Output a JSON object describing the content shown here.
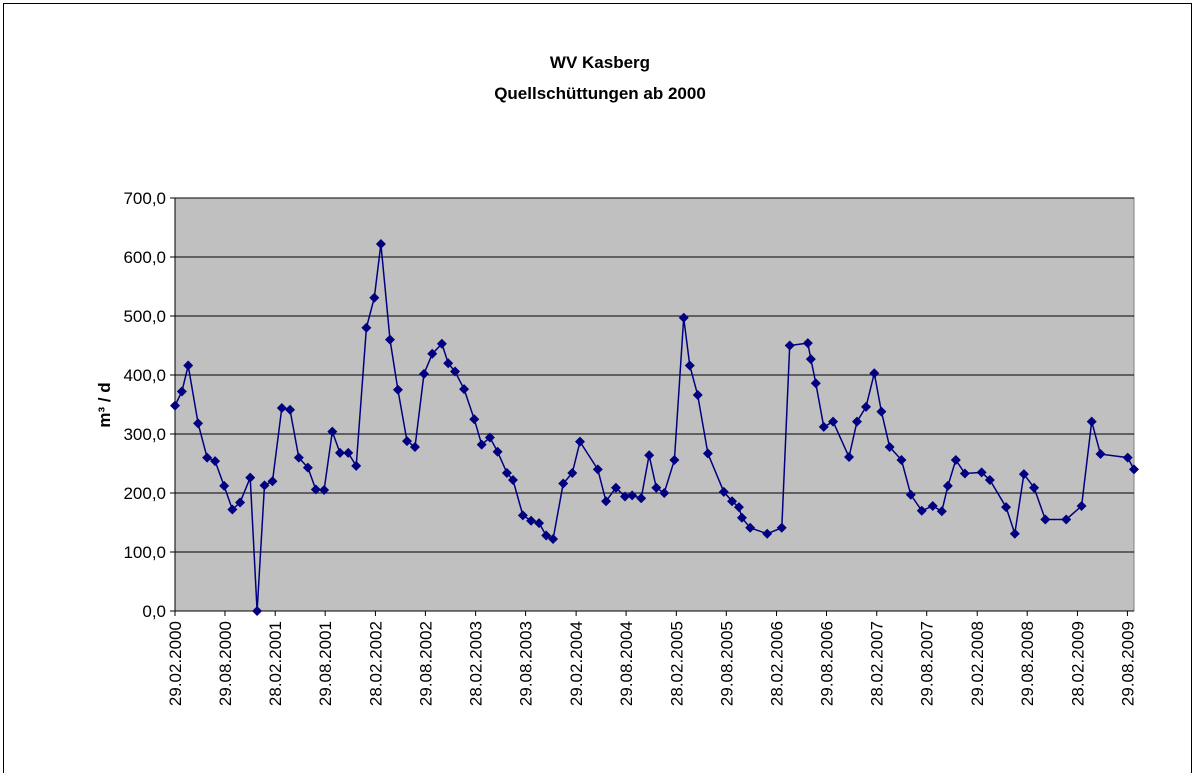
{
  "chart_data": {
    "type": "line",
    "title": "WV Kasberg",
    "subtitle": "Quellschüttungen ab 2000",
    "y_label": "m³ / d",
    "x": [
      "29.02.2000",
      "25.03.2000",
      "17.04.2000",
      "23.05.2000",
      "25.06.2000",
      "24.07.2000",
      "26.08.2000",
      "25.09.2000",
      "23.10.2000",
      "29.11.2000",
      "24.12.2000",
      "20.01.2001",
      "18.02.2001",
      "24.03.2001",
      "23.04.2001",
      "25.05.2001",
      "27.06.2001",
      "26.07.2001",
      "25.08.2001",
      "24.09.2001",
      "22.10.2001",
      "21.11.2001",
      "20.12.2001",
      "26.01.2002",
      "24.02.2002",
      "20.03.2002",
      "22.04.2002",
      "21.05.2002",
      "23.06.2002",
      "22.07.2002",
      "24.08.2002",
      "23.09.2002",
      "28.10.2002",
      "20.11.2002",
      "15.12.2002",
      "17.01.2003",
      "23.02.2003",
      "22.03.2003",
      "21.04.2003",
      "19.05.2003",
      "22.06.2003",
      "14.07.2003",
      "19.08.2003",
      "18.09.2003",
      "17.10.2003",
      "12.11.2003",
      "07.12.2003",
      "13.01.2004",
      "15.02.2004",
      "14.03.2004",
      "18.05.2004",
      "17.06.2004",
      "23.07.2004",
      "25.08.2004",
      "20.09.2004",
      "23.10.2004",
      "21.11.2004",
      "17.12.2004",
      "15.01.2005",
      "21.02.2005",
      "27.03.2005",
      "18.04.2005",
      "17.05.2005",
      "23.06.2005",
      "20.08.2005",
      "19.09.2005",
      "14.10.2005",
      "25.10.2005",
      "24.11.2005",
      "25.01.2006",
      "19.03.2006",
      "17.04.2006",
      "22.06.2006",
      "03.07.2006",
      "21.07.2006",
      "19.08.2006",
      "22.09.2006",
      "19.11.2006",
      "18.12.2006",
      "20.01.2007",
      "19.02.2007",
      "17.03.2007",
      "16.04.2007",
      "29.05.2007",
      "02.07.2007",
      "11.08.2007",
      "20.09.2007",
      "23.10.2007",
      "14.11.2007",
      "13.12.2007",
      "15.01.2008",
      "16.03.2008",
      "15.04.2008",
      "13.06.2008",
      "15.07.2008",
      "17.08.2008",
      "23.09.2008",
      "03.11.2008",
      "18.01.2009",
      "15.03.2009",
      "21.04.2009",
      "23.05.2009",
      "30.08.2009",
      "22.09.2009"
    ],
    "series": [
      {
        "color": "#000080",
        "values": [
          348,
          372,
          416,
          318,
          260,
          254,
          212,
          172,
          184,
          226,
          0,
          213,
          220,
          344,
          341,
          260,
          243,
          206,
          205,
          304,
          268,
          268,
          246,
          480,
          531,
          622,
          460,
          375,
          288,
          278,
          402,
          436,
          453,
          420,
          406,
          376,
          325,
          282,
          294,
          270,
          234,
          222,
          162,
          153,
          149,
          128,
          122,
          216,
          234,
          287,
          240,
          186,
          209,
          194,
          196,
          191,
          264,
          209,
          200,
          256,
          497,
          416,
          366,
          267,
          202,
          186,
          176,
          158,
          141,
          131,
          141,
          450,
          454,
          427,
          386,
          312,
          321,
          261,
          321,
          346,
          403,
          338,
          278,
          256,
          197,
          170,
          178,
          169,
          212,
          256,
          233,
          235,
          222,
          176,
          131,
          232,
          209,
          155,
          155,
          178,
          321,
          266,
          260,
          240
        ]
      }
    ],
    "xlim": [
      "29.02.2000",
      "22.09.2009"
    ],
    "xticks": [
      "29.02.2000",
      "29.08.2000",
      "28.02.2001",
      "29.08.2001",
      "28.02.2002",
      "29.08.2002",
      "28.02.2003",
      "29.08.2003",
      "29.02.2004",
      "29.08.2004",
      "28.02.2005",
      "29.08.2005",
      "28.02.2006",
      "29.08.2006",
      "28.02.2007",
      "29.08.2007",
      "29.02.2008",
      "29.08.2008",
      "28.02.2009",
      "29.08.2009"
    ],
    "ylim": [
      0,
      700
    ],
    "yticks": [
      {
        "value": 0,
        "label": "0,0"
      },
      {
        "value": 100,
        "label": "100,0"
      },
      {
        "value": 200,
        "label": "200,0"
      },
      {
        "value": 300,
        "label": "300,0"
      },
      {
        "value": 400,
        "label": "400,0"
      },
      {
        "value": 500,
        "label": "500,0"
      },
      {
        "value": 600,
        "label": "600,0"
      },
      {
        "value": 700,
        "label": "700,0"
      }
    ],
    "grid": true
  }
}
